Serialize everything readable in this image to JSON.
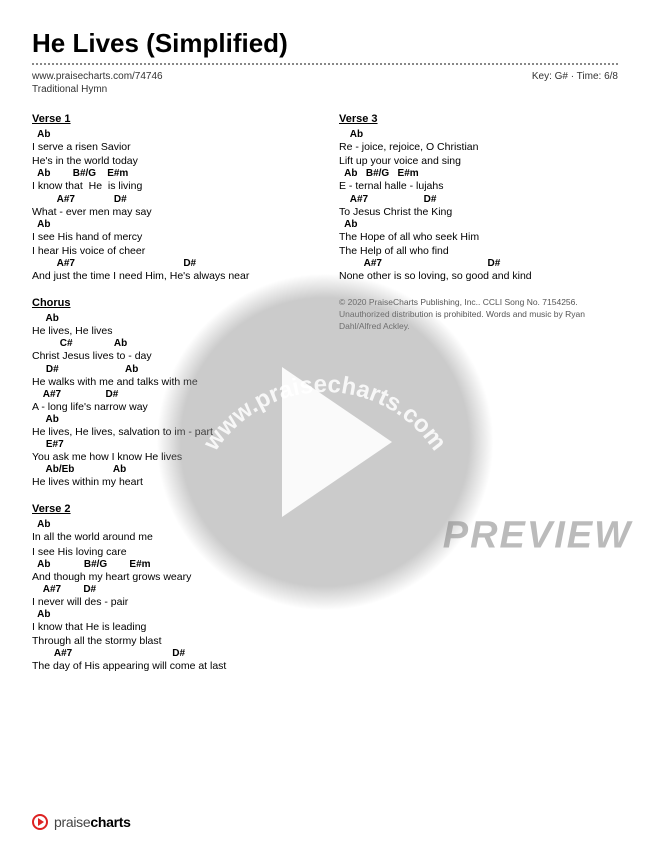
{
  "title": "He Lives (Simplified)",
  "url": "www.praisecharts.com/74746",
  "keytime": "Key: G# · Time: 6/8",
  "subtype": "Traditional Hymn",
  "watermark_url": "www.praisecharts.com",
  "preview_label": "PREVIEW",
  "footer_brand_light": "praise",
  "footer_brand_bold": "charts",
  "copyright": "© 2020 PraiseCharts Publishing, Inc.. CCLI Song No. 7154256. Unauthorized distribution is prohibited. Words and music by Ryan Dahl/Alfred Ackley.",
  "left": [
    {
      "title": "Verse 1",
      "lines": [
        {
          "c": "  Ab",
          "l": ""
        },
        {
          "c": "",
          "l": "I serve a risen Savior"
        },
        {
          "c": "",
          "l": "He's in the world today"
        },
        {
          "c": "  Ab        B#/G    E#m",
          "l": "I know that  He  is living"
        },
        {
          "c": "         A#7              D#",
          "l": "What - ever men may say"
        },
        {
          "c": "  Ab",
          "l": "I see His hand of mercy"
        },
        {
          "c": "",
          "l": "I hear His voice of cheer"
        },
        {
          "c": "         A#7                                       D#",
          "l": "And just the time I need Him, He's always near"
        }
      ]
    },
    {
      "title": "Chorus",
      "lines": [
        {
          "c": "     Ab",
          "l": "He lives, He lives"
        },
        {
          "c": "          C#               Ab",
          "l": "Christ Jesus lives to - day"
        },
        {
          "c": "     D#                        Ab",
          "l": "He walks with me and talks with me"
        },
        {
          "c": "    A#7                D#",
          "l": "A - long life's narrow way"
        },
        {
          "c": "     Ab",
          "l": "He lives, He lives, salvation to im - part"
        },
        {
          "c": "     E#7",
          "l": "You ask me how I know He lives"
        },
        {
          "c": "     Ab/Eb              Ab",
          "l": "He lives within my heart"
        }
      ]
    },
    {
      "title": "Verse 2",
      "lines": [
        {
          "c": "  Ab",
          "l": "In all the world around me"
        },
        {
          "c": "",
          "l": "I see His loving care"
        },
        {
          "c": "  Ab            B#/G        E#m",
          "l": "And though my heart grows weary"
        },
        {
          "c": "    A#7        D#",
          "l": "I never will des - pair"
        },
        {
          "c": "  Ab",
          "l": "I know that He is leading"
        },
        {
          "c": "",
          "l": "Through all the stormy blast"
        },
        {
          "c": "        A#7                                    D#",
          "l": "The day of His appearing will come at last"
        }
      ]
    }
  ],
  "right": [
    {
      "title": "Verse 3",
      "lines": [
        {
          "c": "    Ab",
          "l": "Re - joice, rejoice, O Christian"
        },
        {
          "c": "",
          "l": "Lift up your voice and sing"
        },
        {
          "c": "  Ab   B#/G   E#m",
          "l": "E - ternal halle - lujahs"
        },
        {
          "c": "    A#7                    D#",
          "l": "To Jesus Christ the King"
        },
        {
          "c": "  Ab",
          "l": "The Hope of all who seek Him"
        },
        {
          "c": "",
          "l": "The Help of all who find"
        },
        {
          "c": "         A#7                                      D#",
          "l": "None other is so loving, so good and kind"
        }
      ]
    }
  ]
}
